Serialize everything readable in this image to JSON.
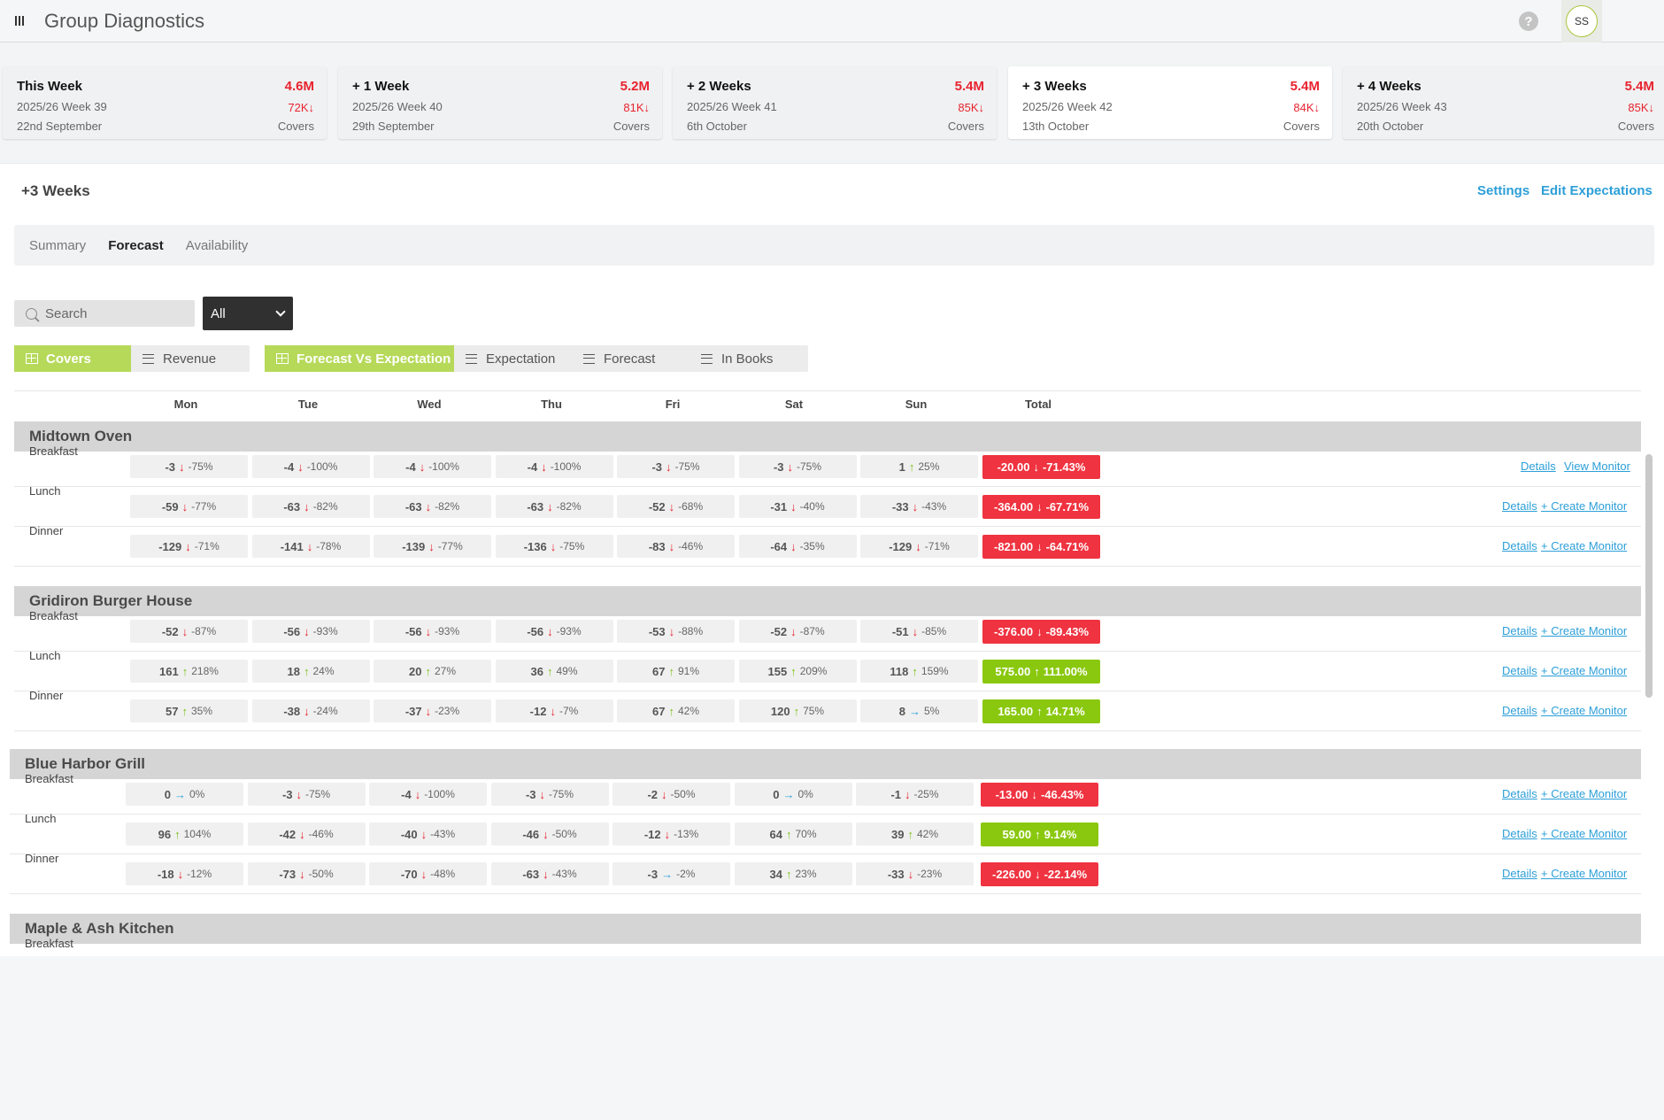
{
  "app": {
    "title": "Group Diagnostics",
    "user_initials": "SS",
    "help_glyph": "?"
  },
  "weeks": [
    {
      "title": "This Week",
      "total": "4.6M",
      "week": "2025/26 Week 39",
      "date": "22nd September",
      "covers": "72K",
      "covers_label": "Covers"
    },
    {
      "title": "+ 1 Week",
      "total": "5.2M",
      "week": "2025/26 Week 40",
      "date": "29th September",
      "covers": "81K",
      "covers_label": "Covers"
    },
    {
      "title": "+ 2 Weeks",
      "total": "5.4M",
      "week": "2025/26 Week 41",
      "date": "6th October",
      "covers": "85K",
      "covers_label": "Covers"
    },
    {
      "title": "+ 3 Weeks",
      "total": "5.4M",
      "week": "2025/26 Week 42",
      "date": "13th October",
      "covers": "84K",
      "covers_label": "Covers"
    },
    {
      "title": "+ 4 Weeks",
      "total": "5.4M",
      "week": "2025/26 Week 43",
      "date": "20th October",
      "covers": "85K",
      "covers_label": "Covers"
    }
  ],
  "section": {
    "title": "+3 Weeks",
    "settings": "Settings",
    "edit": "Edit Expectations"
  },
  "tabs": [
    "Summary",
    "Forecast",
    "Availability"
  ],
  "active_tab": "Forecast",
  "filters": {
    "search_placeholder": "Search",
    "select_value": "All"
  },
  "metric_toggle": [
    "Covers",
    "Revenue"
  ],
  "view_toggle": [
    "Forecast Vs Expectation",
    "Expectation",
    "Forecast",
    "In Books"
  ],
  "days": [
    "Mon",
    "Tue",
    "Wed",
    "Thu",
    "Fri",
    "Sat",
    "Sun",
    "Total"
  ],
  "colors": {
    "accent": "#b6d95a",
    "negative": "#ef3340",
    "positive": "#8ac80f",
    "link": "#2d9fd8"
  },
  "groups": [
    {
      "name": "Midtown Oven",
      "rows": [
        {
          "meal": "Breakfast",
          "cells": [
            [
              "-3",
              "-75%",
              "down"
            ],
            [
              "-4",
              "-100%",
              "down"
            ],
            [
              "-4",
              "-100%",
              "down"
            ],
            [
              "-4",
              "-100%",
              "down"
            ],
            [
              "-3",
              "-75%",
              "down"
            ],
            [
              "-3",
              "-75%",
              "down"
            ],
            [
              "1",
              "25%",
              "up"
            ]
          ],
          "total": [
            "-20.00",
            "-71.43%",
            "down"
          ],
          "link1": "Details",
          "link2": "View Monitor"
        },
        {
          "meal": "Lunch",
          "cells": [
            [
              "-59",
              "-77%",
              "down"
            ],
            [
              "-63",
              "-82%",
              "down"
            ],
            [
              "-63",
              "-82%",
              "down"
            ],
            [
              "-63",
              "-82%",
              "down"
            ],
            [
              "-52",
              "-68%",
              "down"
            ],
            [
              "-31",
              "-40%",
              "down"
            ],
            [
              "-33",
              "-43%",
              "down"
            ]
          ],
          "total": [
            "-364.00",
            "-67.71%",
            "down"
          ],
          "link1": "Details",
          "link2": "+ Create Monitor"
        },
        {
          "meal": "Dinner",
          "cells": [
            [
              "-129",
              "-71%",
              "down"
            ],
            [
              "-141",
              "-78%",
              "down"
            ],
            [
              "-139",
              "-77%",
              "down"
            ],
            [
              "-136",
              "-75%",
              "down"
            ],
            [
              "-83",
              "-46%",
              "down"
            ],
            [
              "-64",
              "-35%",
              "down"
            ],
            [
              "-129",
              "-71%",
              "down"
            ]
          ],
          "total": [
            "-821.00",
            "-64.71%",
            "down"
          ],
          "link1": "Details",
          "link2": "+ Create Monitor"
        }
      ]
    },
    {
      "name": "Gridiron Burger House",
      "rows": [
        {
          "meal": "Breakfast",
          "cells": [
            [
              "-52",
              "-87%",
              "down"
            ],
            [
              "-56",
              "-93%",
              "down"
            ],
            [
              "-56",
              "-93%",
              "down"
            ],
            [
              "-56",
              "-93%",
              "down"
            ],
            [
              "-53",
              "-88%",
              "down"
            ],
            [
              "-52",
              "-87%",
              "down"
            ],
            [
              "-51",
              "-85%",
              "down"
            ]
          ],
          "total": [
            "-376.00",
            "-89.43%",
            "down"
          ],
          "link1": "Details",
          "link2": "+ Create Monitor"
        },
        {
          "meal": "Lunch",
          "cells": [
            [
              "161",
              "218%",
              "up"
            ],
            [
              "18",
              "24%",
              "up"
            ],
            [
              "20",
              "27%",
              "up"
            ],
            [
              "36",
              "49%",
              "up"
            ],
            [
              "67",
              "91%",
              "up"
            ],
            [
              "155",
              "209%",
              "up"
            ],
            [
              "118",
              "159%",
              "up"
            ]
          ],
          "total": [
            "575.00",
            "111.00%",
            "up"
          ],
          "link1": "Details",
          "link2": "+ Create Monitor"
        },
        {
          "meal": "Dinner",
          "cells": [
            [
              "57",
              "35%",
              "up"
            ],
            [
              "-38",
              "-24%",
              "down"
            ],
            [
              "-37",
              "-23%",
              "down"
            ],
            [
              "-12",
              "-7%",
              "down"
            ],
            [
              "67",
              "42%",
              "up"
            ],
            [
              "120",
              "75%",
              "up"
            ],
            [
              "8",
              "5%",
              "flat"
            ]
          ],
          "total": [
            "165.00",
            "14.71%",
            "up"
          ],
          "link1": "Details",
          "link2": "+ Create Monitor"
        }
      ]
    },
    {
      "name": "Blue Harbor Grill",
      "rows": [
        {
          "meal": "Breakfast",
          "cells": [
            [
              "0",
              "0%",
              "flat"
            ],
            [
              "-3",
              "-75%",
              "down"
            ],
            [
              "-4",
              "-100%",
              "down"
            ],
            [
              "-3",
              "-75%",
              "down"
            ],
            [
              "-2",
              "-50%",
              "down"
            ],
            [
              "0",
              "0%",
              "flat"
            ],
            [
              "-1",
              "-25%",
              "down"
            ]
          ],
          "total": [
            "-13.00",
            "-46.43%",
            "down"
          ],
          "link1": "Details",
          "link2": "+ Create Monitor"
        },
        {
          "meal": "Lunch",
          "cells": [
            [
              "96",
              "104%",
              "up"
            ],
            [
              "-42",
              "-46%",
              "down"
            ],
            [
              "-40",
              "-43%",
              "down"
            ],
            [
              "-46",
              "-50%",
              "down"
            ],
            [
              "-12",
              "-13%",
              "down"
            ],
            [
              "64",
              "70%",
              "up"
            ],
            [
              "39",
              "42%",
              "up"
            ]
          ],
          "total": [
            "59.00",
            "9.14%",
            "up"
          ],
          "link1": "Details",
          "link2": "+ Create Monitor"
        },
        {
          "meal": "Dinner",
          "cells": [
            [
              "-18",
              "-12%",
              "down"
            ],
            [
              "-73",
              "-50%",
              "down"
            ],
            [
              "-70",
              "-48%",
              "down"
            ],
            [
              "-63",
              "-43%",
              "down"
            ],
            [
              "-3",
              "-2%",
              "flat"
            ],
            [
              "34",
              "23%",
              "up"
            ],
            [
              "-33",
              "-23%",
              "down"
            ]
          ],
          "total": [
            "-226.00",
            "-22.14%",
            "down"
          ],
          "link1": "Details",
          "link2": "+ Create Monitor"
        }
      ]
    },
    {
      "name": "Maple & Ash Kitchen",
      "rows": [
        {
          "meal": "Breakfast"
        }
      ]
    }
  ]
}
